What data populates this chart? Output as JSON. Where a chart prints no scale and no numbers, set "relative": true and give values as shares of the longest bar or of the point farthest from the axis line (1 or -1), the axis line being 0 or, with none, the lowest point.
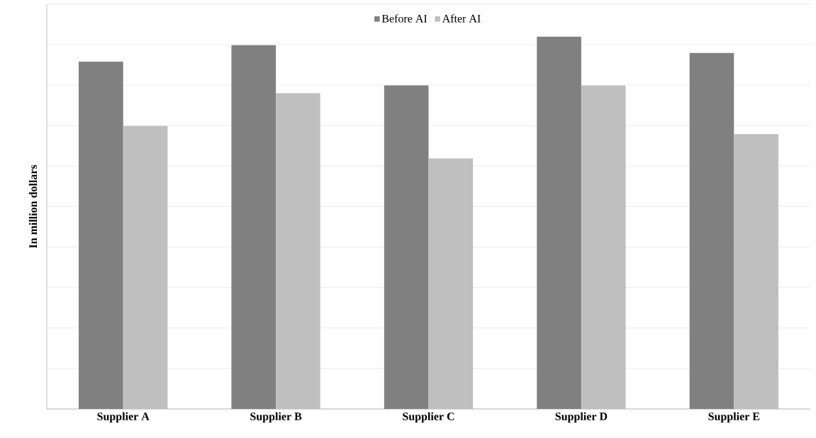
{
  "chart_data": {
    "type": "bar",
    "relative": true,
    "ylabel": "In million dollars",
    "categories": [
      "Supplier A",
      "Supplier B",
      "Supplier C",
      "Supplier D",
      "Supplier E"
    ],
    "series": [
      {
        "name": "Before AI",
        "color": "#808080",
        "values": [
          0.933,
          0.977,
          0.869,
          1,
          0.956
        ]
      },
      {
        "name": "After AI",
        "color": "#bfbfbf",
        "values": [
          0.76,
          0.848,
          0.673,
          0.869,
          0.738
        ]
      }
    ],
    "grid": "y",
    "legend": "top"
  }
}
